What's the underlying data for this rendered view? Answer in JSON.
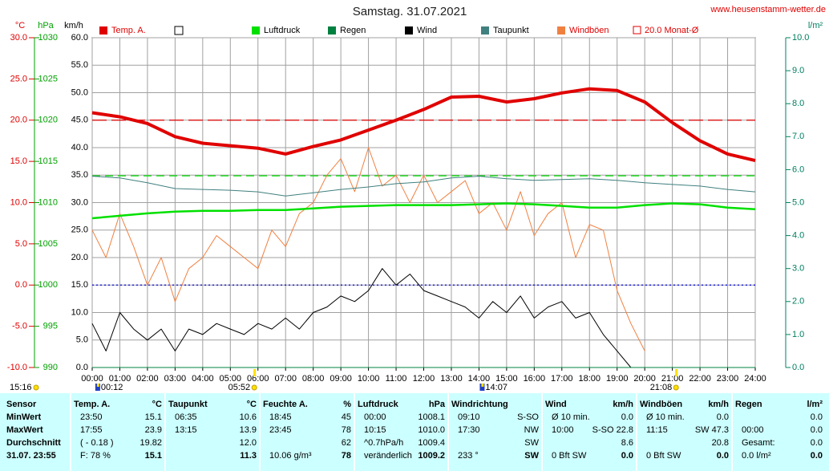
{
  "chart_data": {
    "type": "line",
    "title": "Samstag. 31.07.2021",
    "source": "www.heusenstamm-wetter.de",
    "updated": "15:16",
    "axis_titles": {
      "temp": "°C",
      "hpa": "hPa",
      "y": "km/h",
      "y2": "l/m²"
    },
    "xlim": [
      0,
      24
    ],
    "xticks": [
      {
        "value": 0,
        "label": "00:00"
      },
      {
        "value": 1,
        "label": "01:00"
      },
      {
        "value": 2,
        "label": "02:00"
      },
      {
        "value": 3,
        "label": "03:00"
      },
      {
        "value": 4,
        "label": "04:00"
      },
      {
        "value": 5,
        "label": "05:00"
      },
      {
        "value": 6,
        "label": "06:00"
      },
      {
        "value": 7,
        "label": "07:00"
      },
      {
        "value": 8,
        "label": "08:00"
      },
      {
        "value": 9,
        "label": "09:00"
      },
      {
        "value": 10,
        "label": "10:00"
      },
      {
        "value": 11,
        "label": "11:00"
      },
      {
        "value": 12,
        "label": "12:00"
      },
      {
        "value": 13,
        "label": "13:00"
      },
      {
        "value": 14,
        "label": "14:00"
      },
      {
        "value": 15,
        "label": "15:00"
      },
      {
        "value": 16,
        "label": "16:00"
      },
      {
        "value": 17,
        "label": "17:00"
      },
      {
        "value": 18,
        "label": "18:00"
      },
      {
        "value": 19,
        "label": "19:00"
      },
      {
        "value": 20,
        "label": "20:00"
      },
      {
        "value": 21,
        "label": "21:00"
      },
      {
        "value": 22,
        "label": "22:00"
      },
      {
        "value": 23,
        "label": "23:00"
      },
      {
        "value": 24,
        "label": "24:00"
      }
    ],
    "ylim": [
      0,
      60
    ],
    "yticks": [
      {
        "value": 0,
        "label": "0.0"
      },
      {
        "value": 5,
        "label": "5.0"
      },
      {
        "value": 10,
        "label": "10.0"
      },
      {
        "value": 15,
        "label": "15.0"
      },
      {
        "value": 20,
        "label": "20.0"
      },
      {
        "value": 25,
        "label": "25.0"
      },
      {
        "value": 30,
        "label": "30.0"
      },
      {
        "value": 35,
        "label": "35.0"
      },
      {
        "value": 40,
        "label": "40.0"
      },
      {
        "value": 45,
        "label": "45.0"
      },
      {
        "value": 50,
        "label": "50.0"
      },
      {
        "value": 55,
        "label": "55.0"
      },
      {
        "value": 60,
        "label": "60.0"
      }
    ],
    "temp_lim": [
      -10,
      30
    ],
    "temp_ticks": [
      {
        "value": -10,
        "label": "-10.0"
      },
      {
        "value": -5,
        "label": "-5.0"
      },
      {
        "value": 0,
        "label": "0.0"
      },
      {
        "value": 5,
        "label": "5.0"
      },
      {
        "value": 10,
        "label": "10.0"
      },
      {
        "value": 15,
        "label": "15.0"
      },
      {
        "value": 20,
        "label": "20.0"
      },
      {
        "value": 25,
        "label": "25.0"
      },
      {
        "value": 30,
        "label": "30.0"
      }
    ],
    "hpa_lim": [
      990,
      1030
    ],
    "hpa_ticks": [
      990,
      995,
      1000,
      1005,
      1010,
      1015,
      1020,
      1025,
      1030
    ],
    "y2lim": [
      0,
      10
    ],
    "y2ticks": [
      {
        "value": 0,
        "label": "0.0"
      },
      {
        "value": 1,
        "label": "1.0"
      },
      {
        "value": 2,
        "label": "2.0"
      },
      {
        "value": 3,
        "label": "3.0"
      },
      {
        "value": 4,
        "label": "4.0"
      },
      {
        "value": 5,
        "label": "5.0"
      },
      {
        "value": 6,
        "label": "6.0"
      },
      {
        "value": 7,
        "label": "7.0"
      },
      {
        "value": 8,
        "label": "8.0"
      },
      {
        "value": 9,
        "label": "9.0"
      },
      {
        "value": 10,
        "label": "10.0"
      }
    ],
    "grid": true,
    "series": [
      {
        "name": "Temp. A.",
        "color": "#e00000",
        "axis": "temp",
        "width": 4,
        "x": [
          0,
          1,
          2,
          3,
          4,
          5,
          6,
          7,
          8,
          9,
          10,
          11,
          12,
          13,
          14,
          15,
          16,
          17,
          18,
          19,
          20,
          21,
          22,
          23,
          24
        ],
        "values": [
          20.9,
          20.4,
          19.6,
          18.0,
          17.2,
          16.9,
          16.6,
          15.9,
          16.8,
          17.6,
          18.8,
          20.0,
          21.3,
          22.8,
          22.9,
          22.2,
          22.6,
          23.3,
          23.8,
          23.6,
          22.2,
          19.7,
          17.5,
          15.9,
          15.1
        ]
      },
      {
        "name": "Luftdruck",
        "color": "#00e000",
        "axis": "hpa",
        "width": 2.5,
        "x": [
          0,
          1,
          2,
          3,
          4,
          5,
          6,
          7,
          8,
          9,
          10,
          11,
          12,
          13,
          14,
          15,
          16,
          17,
          18,
          19,
          20,
          21,
          22,
          23,
          24
        ],
        "values": [
          1008.1,
          1008.4,
          1008.7,
          1008.9,
          1009.0,
          1009.0,
          1009.1,
          1009.1,
          1009.3,
          1009.5,
          1009.6,
          1009.7,
          1009.7,
          1009.7,
          1009.8,
          1009.9,
          1009.8,
          1009.6,
          1009.4,
          1009.4,
          1009.7,
          1009.9,
          1009.8,
          1009.4,
          1009.2
        ]
      },
      {
        "name": "Regen",
        "color": "#008040",
        "axis": "y2",
        "width": 1,
        "x": [
          0,
          24
        ],
        "values": [
          0,
          0
        ]
      },
      {
        "name": "Wind",
        "color": "#000000",
        "axis": "y",
        "width": 1,
        "x": [
          0,
          0.5,
          1,
          1.5,
          2,
          2.5,
          3,
          3.5,
          4,
          4.5,
          5,
          5.5,
          6,
          6.5,
          7,
          7.5,
          8,
          8.5,
          9,
          9.5,
          10,
          10.5,
          11,
          11.5,
          12,
          12.5,
          13,
          13.5,
          14,
          14.5,
          15,
          15.5,
          16,
          16.5,
          17,
          17.5,
          18,
          18.5,
          19,
          19.5,
          20
        ],
        "values": [
          8,
          3,
          10,
          7,
          5,
          7,
          3,
          7,
          6,
          8,
          7,
          6,
          8,
          7,
          9,
          7,
          10,
          11,
          13,
          12,
          14,
          18,
          15,
          17,
          14,
          13,
          12,
          11,
          9,
          12,
          10,
          13,
          9,
          11,
          12,
          9,
          10,
          6,
          3,
          0,
          0
        ]
      },
      {
        "name": "Taupunkt",
        "color": "#40807f",
        "axis": "temp",
        "width": 1,
        "x": [
          0,
          1,
          2,
          3,
          4,
          5,
          6,
          7,
          8,
          9,
          10,
          11,
          12,
          13,
          14,
          15,
          16,
          17,
          18,
          19,
          20,
          21,
          22,
          23,
          24
        ],
        "values": [
          13.2,
          13.0,
          12.4,
          11.7,
          11.6,
          11.5,
          11.3,
          10.8,
          11.2,
          11.6,
          11.9,
          12.3,
          12.5,
          13.0,
          13.2,
          12.9,
          12.7,
          12.8,
          12.9,
          12.7,
          12.4,
          12.2,
          12.0,
          11.6,
          11.3
        ]
      },
      {
        "name": "Windböen",
        "color": "#f08040",
        "axis": "y",
        "width": 1,
        "x": [
          0,
          0.5,
          1,
          1.5,
          2,
          2.5,
          3,
          3.5,
          4,
          4.5,
          5,
          5.5,
          6,
          6.5,
          7,
          7.5,
          8,
          8.5,
          9,
          9.5,
          10,
          10.5,
          11,
          11.5,
          12,
          12.5,
          13,
          13.5,
          14,
          14.5,
          15,
          15.5,
          16,
          16.5,
          17,
          17.5,
          18,
          18.5,
          19,
          19.5,
          20
        ],
        "values": [
          25,
          20,
          28,
          22,
          15,
          20,
          12,
          18,
          20,
          24,
          22,
          20,
          18,
          25,
          22,
          28,
          30,
          35,
          38,
          32,
          40,
          33,
          35,
          30,
          35,
          30,
          32,
          34,
          28,
          30,
          25,
          32,
          24,
          28,
          30,
          20,
          26,
          25,
          14,
          8,
          3
        ]
      }
    ],
    "reference_lines": [
      {
        "name": "20.0 Monat-Ø",
        "axis": "temp",
        "value": 20,
        "color": "#e00000",
        "dash": "18,6"
      },
      {
        "axis": "hpa",
        "value": 1013.25,
        "color": "#00e000",
        "dash": "10,6"
      },
      {
        "axis": "temp",
        "value": 0,
        "color": "#0000e0",
        "dash": "2,3"
      }
    ],
    "markers": [
      {
        "label": "05:52",
        "icon": "sun"
      },
      {
        "label": "00:12",
        "icon": "moon"
      },
      {
        "label": "14:07",
        "icon": "moon"
      },
      {
        "label": "21:08",
        "icon": "sun"
      }
    ]
  },
  "table": {
    "headers": [
      {
        "name": "Sensor"
      },
      {
        "name": "Temp. A.",
        "unit": "°C"
      },
      {
        "name": "Taupunkt",
        "unit": "°C"
      },
      {
        "name": "Feuchte A.",
        "unit": "%"
      },
      {
        "name": "Luftdruck",
        "unit": "hPa"
      },
      {
        "name": "Windrichtung"
      },
      {
        "name": "Wind",
        "unit": "km/h"
      },
      {
        "name": "Windböen",
        "unit": "km/h"
      },
      {
        "name": "Regen",
        "unit": "l/m²"
      }
    ],
    "row_labels": [
      "MinWert",
      "MaxWert",
      "Durchschnitt",
      "31.07. 23:55"
    ],
    "rows": [
      [
        {
          "left": "23:50",
          "right": "15.1"
        },
        {
          "left": "06:35",
          "right": "10.6"
        },
        {
          "left": "18:45",
          "right": "45"
        },
        {
          "left": "00:00",
          "right": "1008.1"
        },
        {
          "left": "09:10",
          "right": "S-SO"
        },
        {
          "left": "Ø 10 min.",
          "right": "0.0"
        },
        {
          "left": "Ø 10 min.",
          "right": "0.0"
        },
        {
          "right": "0.0"
        }
      ],
      [
        {
          "left": "17:55",
          "right": "23.9"
        },
        {
          "left": "13:15",
          "right": "13.9"
        },
        {
          "left": "23:45",
          "right": "78"
        },
        {
          "left": "10:15",
          "right": "1010.0"
        },
        {
          "left": "17:30",
          "right": "NW"
        },
        {
          "left": "10:00",
          "right": "S-SO 22.8"
        },
        {
          "left": "11:15",
          "right": "SW 47.3"
        },
        {
          "left": "00:00",
          "right": "0.0"
        }
      ],
      [
        {
          "left": "( - 0.18 )",
          "right": "19.82"
        },
        {
          "right": "12.0"
        },
        {
          "right": "62"
        },
        {
          "left": "^0.7hPa/h",
          "right": "1009.4"
        },
        {
          "right": "SW"
        },
        {
          "right": "8.6"
        },
        {
          "right": "20.8"
        },
        {
          "left": "Gesamt:",
          "right": "0.0"
        }
      ],
      [
        {
          "left": "F: 78 %",
          "right": "15.1"
        },
        {
          "right": "11.3"
        },
        {
          "left": "10.06 g/m³",
          "right": "78"
        },
        {
          "left": "veränderlich",
          "right": "1009.2"
        },
        {
          "left": "233 °",
          "right": "SW"
        },
        {
          "left": "0 Bft SW",
          "right": "0.0"
        },
        {
          "left": "0 Bft SW",
          "right": "0.0"
        },
        {
          "left": "0.0 l/m²",
          "right": "0.0"
        }
      ]
    ]
  }
}
